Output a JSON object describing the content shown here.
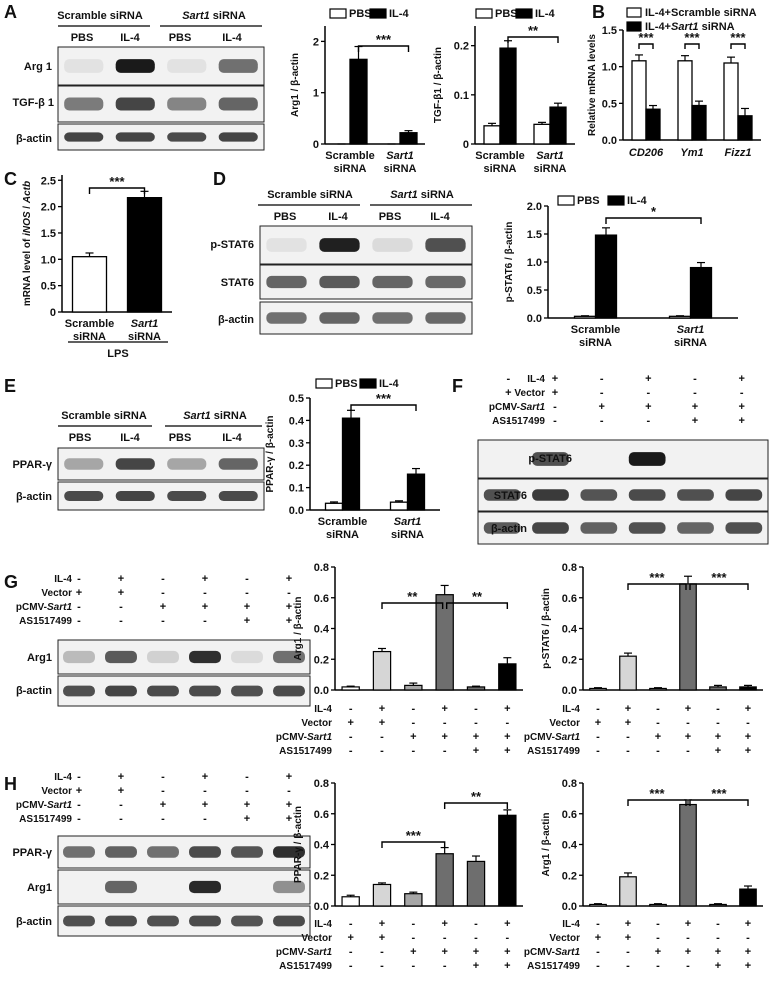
{
  "panels": {
    "A": {
      "letter": "A",
      "blot": {
        "groups": [
          "Scramble siRNA",
          "Sart1 siRNA"
        ],
        "lanes": [
          "PBS",
          "IL-4",
          "PBS",
          "IL-4"
        ],
        "rows": [
          "Arg 1",
          "TGF-β 1",
          "β-actin"
        ]
      }
    },
    "B": {
      "letter": "B"
    },
    "C": {
      "letter": "C"
    },
    "D": {
      "letter": "D",
      "blot": {
        "groups": [
          "Scramble siRNA",
          "Sart1 siRNA"
        ],
        "lanes": [
          "PBS",
          "IL-4",
          "PBS",
          "IL-4"
        ],
        "rows": [
          "p-STAT6",
          "STAT6",
          "β-actin"
        ]
      }
    },
    "E": {
      "letter": "E",
      "blot": {
        "groups": [
          "Scramble siRNA",
          "Sart1 siRNA"
        ],
        "lanes": [
          "PBS",
          "IL-4",
          "PBS",
          "IL-4"
        ],
        "rows": [
          "PPAR-γ",
          "β-actin"
        ]
      }
    },
    "F": {
      "letter": "F",
      "blot": {
        "condition_labels": [
          "IL-4",
          "Vector",
          "pCMV-Sart1",
          "AS1517499"
        ],
        "condition_signs": [
          [
            "-",
            "+",
            "-",
            "+",
            "-",
            "+"
          ],
          [
            "+",
            "+",
            "-",
            "-",
            "-",
            "-"
          ],
          [
            "-",
            "-",
            "+",
            "+",
            "+",
            "+"
          ],
          [
            "-",
            "-",
            "-",
            "-",
            "+",
            "+"
          ]
        ],
        "rows": [
          "p-STAT6",
          "STAT6",
          "β-actin"
        ]
      }
    },
    "G": {
      "letter": "G",
      "blot": {
        "condition_labels": [
          "IL-4",
          "Vector",
          "pCMV-Sart1",
          "AS1517499"
        ],
        "condition_signs": [
          [
            "-",
            "+",
            "-",
            "+",
            "-",
            "+"
          ],
          [
            "+",
            "+",
            "-",
            "-",
            "-",
            "-"
          ],
          [
            "-",
            "-",
            "+",
            "+",
            "+",
            "+"
          ],
          [
            "-",
            "-",
            "-",
            "-",
            "+",
            "+"
          ]
        ],
        "rows": [
          "Arg1",
          "β-actin"
        ]
      }
    },
    "H": {
      "letter": "H",
      "blot": {
        "condition_labels": [
          "IL-4",
          "Vector",
          "pCMV-Sart1",
          "AS1517499"
        ],
        "condition_signs": [
          [
            "-",
            "+",
            "-",
            "+",
            "-",
            "+"
          ],
          [
            "+",
            "+",
            "-",
            "-",
            "-",
            "-"
          ],
          [
            "-",
            "-",
            "+",
            "+",
            "+",
            "+"
          ],
          [
            "-",
            "-",
            "-",
            "-",
            "+",
            "+"
          ]
        ],
        "rows": [
          "PPAR-γ",
          "Arg1",
          "β-actin"
        ]
      }
    }
  },
  "chart_data": [
    {
      "id": "A1",
      "type": "bar",
      "categories": [
        "Scramble siRNA",
        "Sart1 siRNA"
      ],
      "series": [
        {
          "name": "PBS",
          "values": [
            0,
            0
          ]
        },
        {
          "name": "IL-4",
          "values": [
            1.65,
            0.22
          ]
        }
      ],
      "errors": [
        [
          0,
          0
        ],
        [
          0.25,
          0.04
        ]
      ],
      "ylabel": "Arg1 / β-actin",
      "ylim": [
        0,
        2.3
      ],
      "yticks": [
        "0",
        "1",
        "2"
      ],
      "ytick_values": [
        0,
        1,
        2
      ],
      "legend": [
        "PBS",
        "IL-4"
      ],
      "significance": [
        "***"
      ]
    },
    {
      "id": "A2",
      "type": "bar",
      "categories": [
        "Scramble siRNA",
        "Sart1 siRNA"
      ],
      "series": [
        {
          "name": "PBS",
          "values": [
            0.037,
            0.04
          ]
        },
        {
          "name": "IL-4",
          "values": [
            0.195,
            0.075
          ]
        }
      ],
      "errors": [
        [
          0.005,
          0.004
        ],
        [
          0.015,
          0.008
        ]
      ],
      "ylabel": "TGF-β1 / β-actin",
      "ylim": [
        0,
        0.24
      ],
      "yticks": [
        "0",
        "0.1",
        "0.2"
      ],
      "ytick_values": [
        0,
        0.1,
        0.2
      ],
      "legend": [
        "PBS",
        "IL-4"
      ],
      "significance": [
        "**"
      ]
    },
    {
      "id": "B",
      "type": "bar",
      "categories": [
        "CD206",
        "Ym1",
        "Fizz1"
      ],
      "series": [
        {
          "name": "IL-4+Scramble siRNA",
          "values": [
            1.08,
            1.08,
            1.05
          ]
        },
        {
          "name": "IL-4+Sart1 siRNA",
          "values": [
            0.42,
            0.47,
            0.33
          ]
        }
      ],
      "errors": [
        [
          0.08,
          0.07,
          0.08
        ],
        [
          0.05,
          0.06,
          0.1
        ]
      ],
      "ylabel": "Relative mRNA levels",
      "ylim": [
        0,
        1.5
      ],
      "yticks": [
        "0.0",
        "0.5",
        "1.0",
        "1.5"
      ],
      "ytick_values": [
        0,
        0.5,
        1,
        1.5
      ],
      "legend": [
        "IL-4+Scramble siRNA",
        "IL-4+Sart1 siRNA"
      ],
      "significance": [
        "***",
        "***",
        "***"
      ]
    },
    {
      "id": "C",
      "type": "bar",
      "categories": [
        "Scramble siRNA",
        "Sart1 siRNA"
      ],
      "series": [
        {
          "name": "",
          "values": [
            1.05,
            2.17
          ]
        }
      ],
      "errors": [
        [
          0.07,
          0.12
        ]
      ],
      "ylabel": "mRNA level of iNOS / Actb",
      "ylim": [
        0,
        2.6
      ],
      "yticks": [
        "0",
        "0.5",
        "1.0",
        "1.5",
        "2.0",
        "2.5"
      ],
      "ytick_values": [
        0,
        0.5,
        1,
        1.5,
        2,
        2.5
      ],
      "xgroup": "LPS",
      "significance": [
        "***"
      ]
    },
    {
      "id": "D",
      "type": "bar",
      "categories": [
        "Scramble siRNA",
        "Sart1 siRNA"
      ],
      "series": [
        {
          "name": "PBS",
          "values": [
            0.03,
            0.03
          ]
        },
        {
          "name": "IL-4",
          "values": [
            1.48,
            0.9
          ]
        }
      ],
      "errors": [
        [
          0.01,
          0.01
        ],
        [
          0.13,
          0.09
        ]
      ],
      "ylabel": "p-STAT6 / β-actin",
      "ylim": [
        0,
        2.0
      ],
      "yticks": [
        "0.0",
        "0.5",
        "1.0",
        "1.5",
        "2.0"
      ],
      "ytick_values": [
        0,
        0.5,
        1,
        1.5,
        2
      ],
      "legend": [
        "PBS",
        "IL-4"
      ],
      "significance": [
        "*"
      ]
    },
    {
      "id": "E",
      "type": "bar",
      "categories": [
        "Scramble siRNA",
        "Sart1 siRNA"
      ],
      "series": [
        {
          "name": "PBS",
          "values": [
            0.03,
            0.035
          ]
        },
        {
          "name": "IL-4",
          "values": [
            0.41,
            0.16
          ]
        }
      ],
      "errors": [
        [
          0.006,
          0.006
        ],
        [
          0.035,
          0.025
        ]
      ],
      "ylabel": "PPAR-γ / β-actin",
      "ylim": [
        0,
        0.5
      ],
      "yticks": [
        "0.0",
        "0.1",
        "0.2",
        "0.3",
        "0.4",
        "0.5"
      ],
      "ytick_values": [
        0,
        0.1,
        0.2,
        0.3,
        0.4,
        0.5
      ],
      "legend": [
        "PBS",
        "IL-4"
      ],
      "significance": [
        "***"
      ]
    },
    {
      "id": "G1",
      "type": "bar",
      "categories": [
        "1",
        "2",
        "3",
        "4",
        "5",
        "6"
      ],
      "series": [
        {
          "name": "",
          "values": [
            0.02,
            0.25,
            0.03,
            0.62,
            0.02,
            0.17
          ]
        }
      ],
      "errors": [
        0.005,
        0.02,
        0.015,
        0.06,
        0.005,
        0.04
      ],
      "ylabel": "Arg1 / β-actin",
      "ylim": [
        0,
        0.8
      ],
      "yticks": [
        "0.0",
        "0.2",
        "0.4",
        "0.6",
        "0.8"
      ],
      "ytick_values": [
        0,
        0.2,
        0.4,
        0.6,
        0.8
      ],
      "significance": [
        "**",
        "**"
      ]
    },
    {
      "id": "G2",
      "type": "bar",
      "categories": [
        "1",
        "2",
        "3",
        "4",
        "5",
        "6"
      ],
      "series": [
        {
          "name": "",
          "values": [
            0.01,
            0.22,
            0.01,
            0.69,
            0.02,
            0.02
          ]
        }
      ],
      "errors": [
        0.005,
        0.02,
        0.005,
        0.05,
        0.01,
        0.01
      ],
      "ylabel": "p-STAT6 / β-actin",
      "ylim": [
        0,
        0.8
      ],
      "yticks": [
        "0.0",
        "0.2",
        "0.4",
        "0.6",
        "0.8"
      ],
      "ytick_values": [
        0,
        0.2,
        0.4,
        0.6,
        0.8
      ],
      "significance": [
        "***",
        "***"
      ]
    },
    {
      "id": "H1",
      "type": "bar",
      "categories": [
        "1",
        "2",
        "3",
        "4",
        "5",
        "6"
      ],
      "series": [
        {
          "name": "",
          "values": [
            0.06,
            0.14,
            0.08,
            0.34,
            0.29,
            0.59
          ]
        }
      ],
      "errors": [
        0.01,
        0.01,
        0.01,
        0.04,
        0.035,
        0.035
      ],
      "ylabel": "PPAR-γ / β-actin",
      "ylim": [
        0,
        0.8
      ],
      "yticks": [
        "0.0",
        "0.2",
        "0.4",
        "0.6",
        "0.8"
      ],
      "ytick_values": [
        0,
        0.2,
        0.4,
        0.6,
        0.8
      ],
      "significance": [
        "***",
        "**"
      ]
    },
    {
      "id": "H2",
      "type": "bar",
      "categories": [
        "1",
        "2",
        "3",
        "4",
        "5",
        "6"
      ],
      "series": [
        {
          "name": "",
          "values": [
            0.01,
            0.19,
            0.01,
            0.66,
            0.01,
            0.11
          ]
        }
      ],
      "errors": [
        0.005,
        0.025,
        0.005,
        0.03,
        0.005,
        0.02
      ],
      "ylabel": "Arg1 / β-actin",
      "ylim": [
        0,
        0.8
      ],
      "yticks": [
        "0.0",
        "0.2",
        "0.4",
        "0.6",
        "0.8"
      ],
      "ytick_values": [
        0,
        0.2,
        0.4,
        0.6,
        0.8
      ],
      "significance": [
        "***",
        "***"
      ]
    }
  ],
  "condition_table": {
    "labels": [
      "IL-4",
      "Vector",
      "pCMV-Sart1",
      "AS1517499"
    ],
    "signs": [
      [
        "-",
        "+",
        "-",
        "+",
        "-",
        "+"
      ],
      [
        "+",
        "+",
        "-",
        "-",
        "-",
        "-"
      ],
      [
        "-",
        "-",
        "+",
        "+",
        "+",
        "+"
      ],
      [
        "-",
        "-",
        "-",
        "-",
        "+",
        "+"
      ]
    ]
  },
  "colors": {
    "pbs": "#ffffff",
    "il4": "#000000",
    "six_groups": [
      "#ffffff",
      "#d6d6d6",
      "#a6a6a6",
      "#6e6e6e",
      "#6e6e6e",
      "#000000"
    ]
  }
}
